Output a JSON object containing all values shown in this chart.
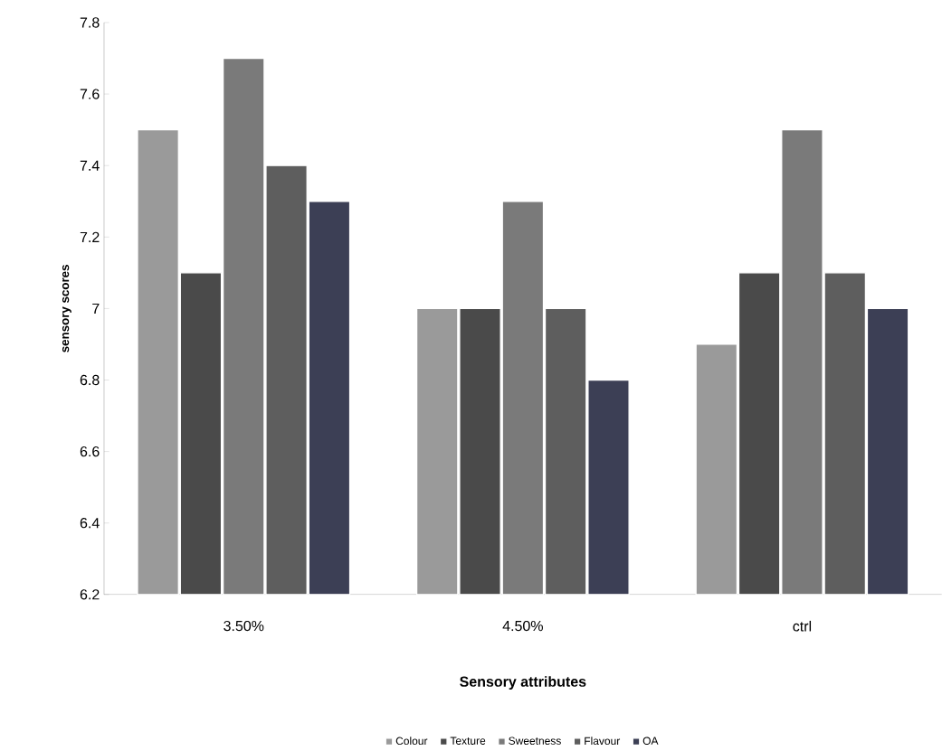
{
  "chart_data": {
    "type": "bar",
    "xlabel": "Sensory attributes",
    "ylabel": "sensory scores",
    "categories": [
      "3.50%",
      "4.50%",
      "ctrl"
    ],
    "series": [
      {
        "name": "Colour",
        "color": "#9a9a9a",
        "values": [
          7.5,
          7.0,
          6.9
        ]
      },
      {
        "name": "Texture",
        "color": "#4a4a4a",
        "values": [
          7.1,
          7.0,
          7.1
        ]
      },
      {
        "name": "Sweetness",
        "color": "#7a7a7a",
        "values": [
          7.7,
          7.3,
          7.5
        ]
      },
      {
        "name": "Flavour",
        "color": "#5e5e5e",
        "values": [
          7.4,
          7.0,
          7.1
        ]
      },
      {
        "name": "OA",
        "color": "#3c3f55",
        "values": [
          7.3,
          6.8,
          7.0
        ]
      }
    ],
    "ylim": [
      6.2,
      7.8
    ],
    "yticks": [
      6.2,
      6.4,
      6.6,
      6.8,
      7,
      7.2,
      7.4,
      7.6,
      7.8
    ],
    "legend": "bottom"
  }
}
